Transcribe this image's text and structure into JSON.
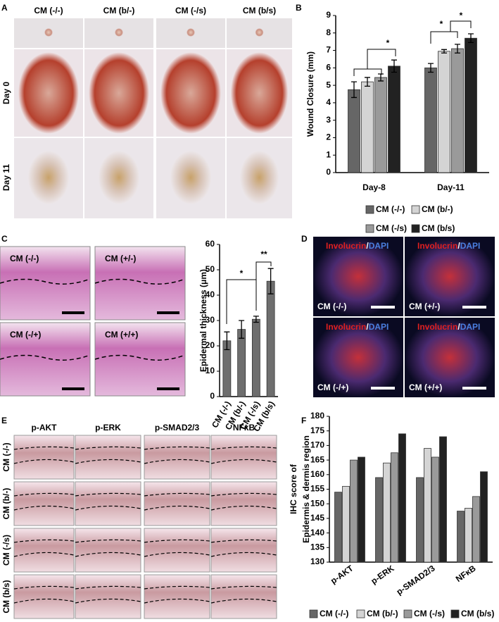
{
  "panels": {
    "A": {
      "letter": "A",
      "columns": [
        "CM (-/-)",
        "CM (b/-)",
        "CM (-/s)",
        "CM (b/s)"
      ],
      "rows": [
        "Day 0",
        "Day 11"
      ]
    },
    "C": {
      "letter": "C",
      "labels": [
        "CM (-/-)",
        "CM (+/-)",
        "CM (-/+)",
        "CM (+/+)"
      ]
    },
    "D": {
      "letter": "D",
      "stain_marker": "Involucrin",
      "stain_sep": "/",
      "stain_dapi": "DAPI",
      "labels": [
        "CM (-/-)",
        "CM (+/-)",
        "CM (-/+)",
        "CM (+/+)"
      ]
    },
    "E": {
      "letter": "E",
      "columns": [
        "p-AKT",
        "p-ERK",
        "p-SMAD2/3",
        "NFκB"
      ],
      "rows": [
        "CM (-/-)",
        "CM (b/-)",
        "CM (-/s)",
        "CM (b/s)"
      ]
    }
  },
  "chart_data": [
    {
      "type": "bar",
      "panel_label": "B",
      "ylabel": "Wound Closure (mm)",
      "categories": [
        "Day-8",
        "Day-11"
      ],
      "series": [
        {
          "name": "CM (-/-)",
          "color": "#666666",
          "values": [
            4.75,
            6.0
          ],
          "errors": [
            0.45,
            0.25
          ]
        },
        {
          "name": "CM (b/-)",
          "color": "#d4d4d4",
          "values": [
            5.2,
            6.95
          ],
          "errors": [
            0.25,
            0.1
          ]
        },
        {
          "name": "CM (-/s)",
          "color": "#9a9a9a",
          "values": [
            5.45,
            7.1
          ],
          "errors": [
            0.2,
            0.25
          ]
        },
        {
          "name": "CM (b/s)",
          "color": "#222222",
          "values": [
            6.1,
            7.7
          ],
          "errors": [
            0.35,
            0.25
          ]
        }
      ],
      "ylim": [
        0,
        9
      ],
      "yticks": [
        0,
        1,
        2,
        3,
        4,
        5,
        6,
        7,
        8,
        9
      ],
      "annotations": [
        "*",
        "*",
        "*"
      ]
    },
    {
      "type": "bar",
      "ylabel": "Epidermal thickness (μm)",
      "categories": [
        "CM (-/-)",
        "CM (b/-)",
        "CM (-/s)",
        "CM (b/s)"
      ],
      "values": [
        22,
        26.5,
        30.5,
        45.5
      ],
      "errors": [
        3.5,
        3.5,
        1.2,
        5
      ],
      "color": "#6e6e6e",
      "ylim": [
        0,
        60
      ],
      "yticks": [
        0,
        10,
        20,
        30,
        40,
        50,
        60
      ],
      "annotations": [
        "*",
        "**"
      ]
    },
    {
      "type": "bar",
      "panel_label": "F",
      "ylabel": [
        "IHC score of",
        "Epidermis & dermis region"
      ],
      "categories": [
        "p-AKT",
        "p-ERK",
        "p-SMAD2/3",
        "NFκB"
      ],
      "series": [
        {
          "name": "CM (-/-)",
          "color": "#666666",
          "values": [
            154,
            159,
            159,
            147.5
          ]
        },
        {
          "name": "CM (b/-)",
          "color": "#d4d4d4",
          "values": [
            156,
            164,
            169,
            148.5
          ]
        },
        {
          "name": "CM (-/s)",
          "color": "#9a9a9a",
          "values": [
            165,
            167.5,
            166,
            152.5
          ]
        },
        {
          "name": "CM (b/s)",
          "color": "#222222",
          "values": [
            166,
            174,
            173,
            161
          ]
        }
      ],
      "ylim": [
        130,
        180
      ],
      "yticks": [
        130,
        135,
        140,
        145,
        150,
        155,
        160,
        165,
        170,
        175,
        180
      ]
    }
  ]
}
